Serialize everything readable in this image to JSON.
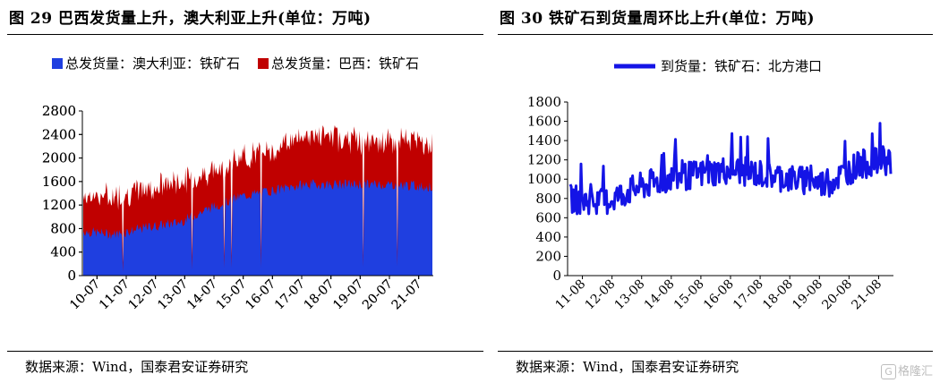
{
  "panels": {
    "left": {
      "title": "图 29 巴西发货量上升，澳大利亚上升(单位：万吨)",
      "source": "数据来源：Wind，国泰君安证券研究"
    },
    "right": {
      "title": "图 30 铁矿石到货量周环比上升(单位：万吨)",
      "source": "数据来源：Wind，国泰君安证券研究"
    }
  },
  "watermark": {
    "badge": "G",
    "text": "格隆汇"
  },
  "colors": {
    "australia": "#1f3fe0",
    "brazil": "#c00000",
    "arrivals": "#1414e6"
  },
  "chart_data": [
    {
      "type": "area",
      "stacked": true,
      "title": "",
      "xlabel": "",
      "ylabel": "",
      "ylim": [
        0,
        2800
      ],
      "yticks": [
        0,
        400,
        800,
        1200,
        1600,
        2000,
        2400,
        2800
      ],
      "xticks": [
        "10-07",
        "11-07",
        "12-07",
        "13-07",
        "14-07",
        "15-07",
        "16-07",
        "17-07",
        "18-07",
        "19-07",
        "20-07",
        "21-07"
      ],
      "legend_position": "top",
      "x": [
        "10-07",
        "11-07",
        "12-07",
        "13-07",
        "14-07",
        "15-07",
        "16-07",
        "17-07",
        "18-07",
        "19-07",
        "20-07",
        "21-07"
      ],
      "series": [
        {
          "name": "总发货量：澳大利亚：铁矿石",
          "values": [
            750,
            700,
            820,
            900,
            1150,
            1350,
            1450,
            1550,
            1550,
            1550,
            1550,
            1500
          ]
        },
        {
          "name": "总发货量：巴西：铁矿石",
          "values": [
            600,
            650,
            650,
            700,
            600,
            650,
            700,
            850,
            800,
            700,
            750,
            800
          ]
        }
      ]
    },
    {
      "type": "line",
      "title": "",
      "xlabel": "",
      "ylabel": "",
      "ylim": [
        0,
        1800
      ],
      "yticks": [
        0,
        200,
        400,
        600,
        800,
        1000,
        1200,
        1400,
        1600,
        1800
      ],
      "xticks": [
        "11-08",
        "12-08",
        "13-08",
        "14-08",
        "15-08",
        "16-08",
        "17-08",
        "18-08",
        "19-08",
        "20-08",
        "21-08"
      ],
      "legend_position": "top",
      "x": [
        "11-08",
        "12-08",
        "13-08",
        "14-08",
        "15-08",
        "16-08",
        "17-08",
        "18-08",
        "19-08",
        "20-08",
        "21-08"
      ],
      "series": [
        {
          "name": "到货量：铁矿石：北方港口",
          "values": [
            800,
            750,
            900,
            1000,
            1050,
            1100,
            1050,
            1000,
            950,
            1150,
            1200
          ]
        }
      ]
    }
  ]
}
